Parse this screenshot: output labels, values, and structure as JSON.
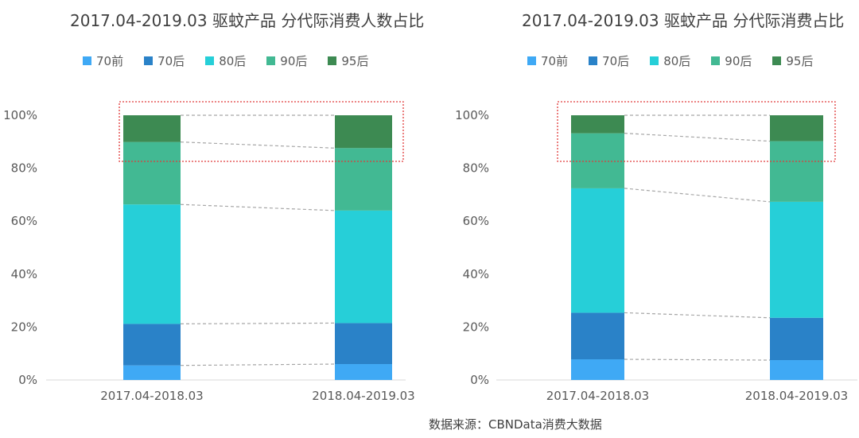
{
  "chart_data": [
    {
      "type": "bar",
      "stacked": true,
      "title": "2017.04-2019.03 驱蚊产品 分代际消费人数占比",
      "categories": [
        "2017.04-2018.03",
        "2018.04-2019.03"
      ],
      "ylim": [
        0,
        100
      ],
      "yticks": [
        "0%",
        "20%",
        "40%",
        "60%",
        "80%",
        "100%"
      ],
      "legend_position": "top",
      "series": [
        {
          "name": "70前",
          "color": "#3FA9F5",
          "values": [
            5.5,
            6.0
          ]
        },
        {
          "name": "70后",
          "color": "#2A82C8",
          "values": [
            15.7,
            15.5
          ]
        },
        {
          "name": "80后",
          "color": "#26CFD8",
          "values": [
            45.1,
            42.5
          ]
        },
        {
          "name": "90后",
          "color": "#42B993",
          "values": [
            23.6,
            23.6
          ]
        },
        {
          "name": "95后",
          "color": "#3D8A52",
          "values": [
            10.1,
            12.4
          ]
        }
      ]
    },
    {
      "type": "bar",
      "stacked": true,
      "title": "2017.04-2019.03 驱蚊产品 分代际消费占比",
      "categories": [
        "2017.04-2018.03",
        "2018.04-2019.03"
      ],
      "ylim": [
        0,
        100
      ],
      "yticks": [
        "0%",
        "20%",
        "40%",
        "60%",
        "80%",
        "100%"
      ],
      "legend_position": "top",
      "series": [
        {
          "name": "70前",
          "color": "#3FA9F5",
          "values": [
            7.8,
            7.5
          ]
        },
        {
          "name": "70后",
          "color": "#2A82C8",
          "values": [
            17.6,
            16.0
          ]
        },
        {
          "name": "80后",
          "color": "#26CFD8",
          "values": [
            47.0,
            43.8
          ]
        },
        {
          "name": "90后",
          "color": "#42B993",
          "values": [
            20.8,
            22.9
          ]
        },
        {
          "name": "95后",
          "color": "#3D8A52",
          "values": [
            6.8,
            9.8
          ]
        }
      ]
    }
  ],
  "source": "数据来源：CBNData消费大数据"
}
